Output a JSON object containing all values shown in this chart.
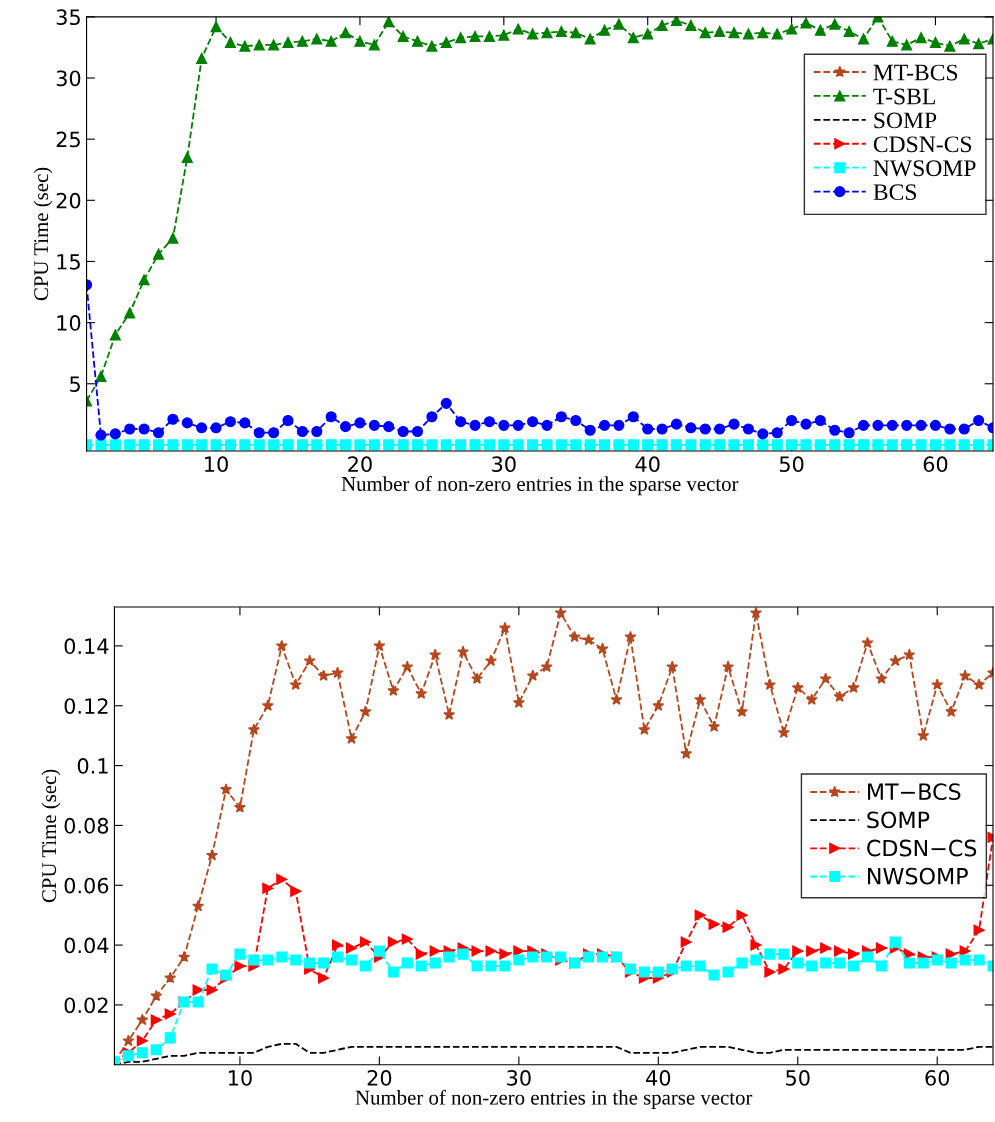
{
  "chart_data": [
    {
      "type": "line",
      "xlabel": "Number of non-zero entries in the sparse vector",
      "ylabel": "CPU Time (sec)",
      "xlim": [
        1,
        64
      ],
      "xticks": [
        10,
        20,
        30,
        40,
        50,
        60
      ],
      "ylim": [
        -0.5,
        35
      ],
      "yticks": [
        5,
        10,
        15,
        20,
        25,
        30,
        35
      ],
      "grid": false,
      "legend": "top right",
      "line_style": "dashed",
      "x": [
        1,
        2,
        3,
        4,
        5,
        6,
        7,
        8,
        9,
        10,
        11,
        12,
        13,
        14,
        15,
        16,
        17,
        18,
        19,
        20,
        21,
        22,
        23,
        24,
        25,
        26,
        27,
        28,
        29,
        30,
        31,
        32,
        33,
        34,
        35,
        36,
        37,
        38,
        39,
        40,
        41,
        42,
        43,
        44,
        45,
        46,
        47,
        48,
        49,
        50,
        51,
        52,
        53,
        54,
        55,
        56,
        57,
        58,
        59,
        60,
        61,
        62,
        63,
        64
      ],
      "series": [
        {
          "name": "MT-BCS",
          "color": "#b5481e",
          "marker": "star",
          "values": [
            null,
            null,
            null,
            null,
            null,
            null,
            null,
            null,
            null,
            null,
            null,
            null,
            null,
            null,
            null,
            null,
            null,
            null,
            null,
            null,
            null,
            null,
            null,
            null,
            null,
            null,
            null,
            null,
            null,
            null,
            null,
            null,
            null,
            null,
            null,
            null,
            null,
            null,
            null,
            null,
            null,
            null,
            null,
            null,
            null,
            null,
            null,
            null,
            null,
            null,
            null,
            null,
            null,
            null,
            null,
            null,
            null,
            null,
            null,
            null,
            null,
            null,
            null,
            null
          ]
        },
        {
          "name": "T-SBL",
          "color": "#008000",
          "marker": "triangle",
          "values": [
            3.6,
            5.6,
            9.0,
            10.8,
            13.5,
            15.6,
            16.9,
            23.5,
            31.6,
            34.2,
            32.9,
            32.6,
            32.7,
            32.7,
            32.9,
            33.0,
            33.2,
            33.0,
            33.7,
            33.0,
            32.7,
            34.6,
            33.4,
            33.0,
            32.6,
            32.9,
            33.3,
            33.4,
            33.4,
            33.5,
            34.0,
            33.6,
            33.7,
            33.8,
            33.7,
            33.2,
            33.9,
            34.4,
            33.3,
            33.6,
            34.3,
            34.7,
            34.3,
            33.7,
            33.8,
            33.7,
            33.6,
            33.7,
            33.6,
            34.0,
            34.5,
            33.9,
            34.4,
            33.8,
            33.2,
            35.0,
            33.0,
            32.7,
            33.3,
            32.9,
            32.6,
            33.2,
            32.8,
            33.2
          ]
        },
        {
          "name": "SOMP",
          "color": "#000000",
          "marker": "none",
          "values": [
            null,
            null,
            null,
            null,
            null,
            null,
            null,
            null,
            null,
            null,
            null,
            null,
            null,
            null,
            null,
            null,
            null,
            null,
            null,
            null,
            null,
            null,
            null,
            null,
            null,
            null,
            null,
            null,
            null,
            null,
            null,
            null,
            null,
            null,
            null,
            null,
            null,
            null,
            null,
            null,
            null,
            null,
            null,
            null,
            null,
            null,
            null,
            null,
            null,
            null,
            null,
            null,
            null,
            null,
            null,
            null,
            null,
            null,
            null,
            null,
            null,
            null,
            null,
            null
          ]
        },
        {
          "name": "CDSN-CS",
          "color": "#ff0000",
          "marker": "triangle_right",
          "values": [
            null,
            null,
            null,
            null,
            null,
            null,
            null,
            null,
            null,
            null,
            null,
            null,
            null,
            null,
            null,
            null,
            null,
            null,
            null,
            null,
            null,
            null,
            null,
            null,
            null,
            null,
            null,
            null,
            null,
            null,
            null,
            null,
            null,
            null,
            null,
            null,
            null,
            null,
            null,
            null,
            null,
            null,
            null,
            null,
            null,
            null,
            null,
            null,
            null,
            null,
            null,
            null,
            null,
            null,
            null,
            null,
            null,
            null,
            null,
            null,
            null,
            null,
            null,
            null
          ]
        },
        {
          "name": "NWSOMP",
          "color": "#00ffff",
          "marker": "square",
          "values": [
            0,
            0,
            0,
            0,
            0,
            0,
            0,
            0,
            0,
            0,
            0,
            0,
            0,
            0,
            0,
            0,
            0,
            0,
            0,
            0,
            0,
            0,
            0,
            0,
            0,
            0,
            0,
            0,
            0,
            0,
            0,
            0,
            0,
            0,
            0,
            0,
            0,
            0,
            0,
            0,
            0,
            0,
            0,
            0,
            0,
            0,
            0,
            0,
            0,
            0,
            0,
            0,
            0,
            0,
            0,
            0,
            0,
            0,
            0,
            0,
            0,
            0,
            0,
            0
          ]
        },
        {
          "name": "BCS",
          "color": "#0000ff",
          "marker": "circle",
          "values": [
            13.1,
            0.8,
            0.9,
            1.3,
            1.3,
            1.0,
            2.1,
            1.8,
            1.4,
            1.4,
            1.9,
            1.8,
            1.0,
            1.0,
            2.0,
            1.1,
            1.1,
            2.3,
            1.5,
            1.8,
            1.6,
            1.5,
            1.1,
            1.1,
            2.3,
            3.4,
            1.9,
            1.6,
            1.9,
            1.6,
            1.6,
            1.9,
            1.6,
            2.3,
            2.0,
            1.2,
            1.6,
            1.6,
            2.3,
            1.3,
            1.3,
            1.7,
            1.4,
            1.3,
            1.3,
            1.7,
            1.3,
            0.9,
            1.0,
            2.0,
            1.7,
            2.0,
            1.2,
            1.0,
            1.6,
            1.6,
            1.6,
            1.6,
            1.6,
            1.6,
            1.3,
            1.3,
            2.0,
            1.4
          ]
        }
      ]
    },
    {
      "type": "line",
      "xlabel": "Number of non-zero entries in the sparse vector",
      "ylabel": "CPU Time (sec)",
      "xlim": [
        1,
        64
      ],
      "xticks": [
        10,
        20,
        30,
        40,
        50,
        60
      ],
      "ylim": [
        0,
        0.153
      ],
      "yticks": [
        0.02,
        0.04,
        0.06,
        0.08,
        {
          "value": 0.1,
          "label": "0.1"
        },
        0.12,
        0.14
      ],
      "grid": false,
      "legend": "center right",
      "line_style": "dashed",
      "x": [
        1,
        2,
        3,
        4,
        5,
        6,
        7,
        8,
        9,
        10,
        11,
        12,
        13,
        14,
        15,
        16,
        17,
        18,
        19,
        20,
        21,
        22,
        23,
        24,
        25,
        26,
        27,
        28,
        29,
        30,
        31,
        32,
        33,
        34,
        35,
        36,
        37,
        38,
        39,
        40,
        41,
        42,
        43,
        44,
        45,
        46,
        47,
        48,
        49,
        50,
        51,
        52,
        53,
        54,
        55,
        56,
        57,
        58,
        59,
        60,
        61,
        62,
        63,
        64
      ],
      "series": [
        {
          "name": "MT−BCS",
          "color": "#b5481e",
          "marker": "star",
          "values": [
            0.001,
            0.008,
            0.015,
            0.023,
            0.029,
            0.036,
            0.053,
            0.07,
            0.092,
            0.086,
            0.112,
            0.12,
            0.14,
            0.127,
            0.135,
            0.13,
            0.131,
            0.109,
            0.118,
            0.14,
            0.125,
            0.133,
            0.124,
            0.137,
            0.117,
            0.138,
            0.129,
            0.135,
            0.146,
            0.121,
            0.13,
            0.133,
            0.151,
            0.143,
            0.142,
            0.139,
            0.122,
            0.143,
            0.112,
            0.12,
            0.133,
            0.104,
            0.122,
            0.113,
            0.133,
            0.118,
            0.151,
            0.127,
            0.111,
            0.126,
            0.122,
            0.129,
            0.123,
            0.126,
            0.141,
            0.129,
            0.135,
            0.137,
            0.11,
            0.127,
            0.118,
            0.13,
            0.127,
            0.131
          ]
        },
        {
          "name": "SOMP",
          "color": "#000000",
          "marker": "none",
          "values": [
            0.0,
            0.001,
            0.001,
            0.002,
            0.003,
            0.003,
            0.004,
            0.004,
            0.004,
            0.004,
            0.004,
            0.006,
            0.007,
            0.007,
            0.004,
            0.004,
            0.005,
            0.006,
            0.006,
            0.006,
            0.006,
            0.006,
            0.006,
            0.006,
            0.006,
            0.006,
            0.006,
            0.006,
            0.006,
            0.006,
            0.006,
            0.006,
            0.006,
            0.006,
            0.006,
            0.006,
            0.006,
            0.004,
            0.004,
            0.004,
            0.004,
            0.005,
            0.006,
            0.006,
            0.006,
            0.005,
            0.004,
            0.004,
            0.005,
            0.005,
            0.005,
            0.005,
            0.005,
            0.005,
            0.005,
            0.005,
            0.005,
            0.005,
            0.005,
            0.005,
            0.005,
            0.005,
            0.006,
            0.006
          ]
        },
        {
          "name": "CDSN−CS",
          "color": "#ff0000",
          "marker": "triangle_right",
          "values": [
            0.001,
            0.004,
            0.008,
            0.015,
            0.017,
            0.021,
            0.025,
            0.025,
            0.029,
            0.033,
            0.033,
            0.059,
            0.062,
            0.058,
            0.032,
            0.029,
            0.04,
            0.039,
            0.041,
            0.036,
            0.041,
            0.042,
            0.037,
            0.038,
            0.038,
            0.039,
            0.038,
            0.038,
            0.037,
            0.038,
            0.038,
            0.037,
            0.035,
            0.034,
            0.037,
            0.037,
            0.036,
            0.031,
            0.029,
            0.029,
            0.031,
            0.041,
            0.05,
            0.047,
            0.046,
            0.05,
            0.04,
            0.031,
            0.032,
            0.038,
            0.038,
            0.039,
            0.038,
            0.037,
            0.038,
            0.039,
            0.039,
            0.037,
            0.036,
            0.036,
            0.037,
            0.038,
            0.045,
            0.076
          ]
        },
        {
          "name": "NWSOMP",
          "color": "#00ffff",
          "marker": "square",
          "values": [
            0.001,
            0.003,
            0.004,
            0.005,
            0.009,
            0.021,
            0.021,
            0.032,
            0.03,
            0.037,
            0.035,
            0.035,
            0.036,
            0.035,
            0.034,
            0.034,
            0.036,
            0.035,
            0.033,
            0.038,
            0.031,
            0.034,
            0.033,
            0.034,
            0.036,
            0.037,
            0.033,
            0.033,
            0.033,
            0.035,
            0.036,
            0.036,
            0.036,
            0.034,
            0.036,
            0.036,
            0.036,
            0.032,
            0.031,
            0.031,
            0.032,
            0.033,
            0.033,
            0.03,
            0.031,
            0.034,
            0.035,
            0.037,
            0.037,
            0.034,
            0.033,
            0.034,
            0.034,
            0.033,
            0.036,
            0.033,
            0.041,
            0.034,
            0.034,
            0.035,
            0.034,
            0.035,
            0.035,
            0.033
          ]
        }
      ]
    }
  ]
}
